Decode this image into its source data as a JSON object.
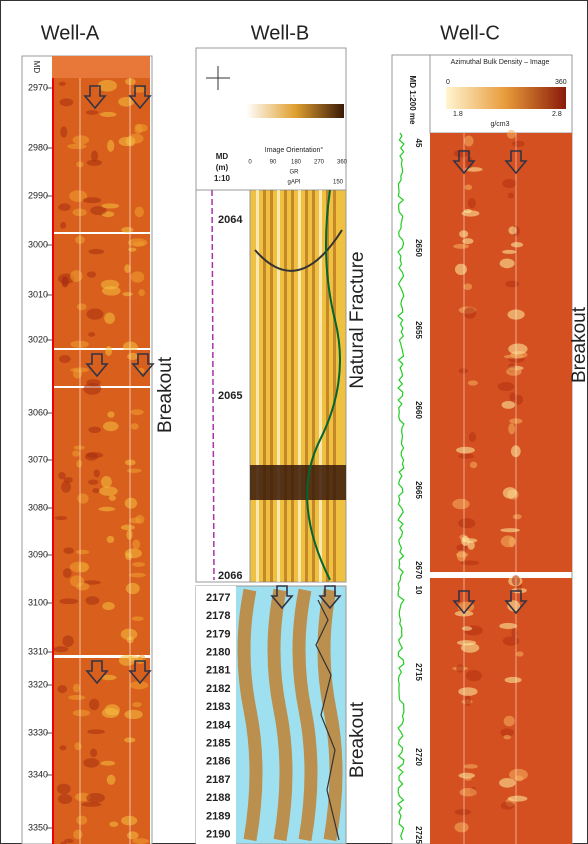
{
  "well_a": {
    "title": "Well-A",
    "depth_header": "MD",
    "depths": [
      "2970",
      "2980",
      "2990",
      "3000",
      "3010",
      "3020",
      "3060",
      "3070",
      "3080",
      "3090",
      "3100",
      "3310",
      "3320",
      "3330",
      "3340",
      "3350"
    ],
    "annotation": "Breakout"
  },
  "well_b": {
    "title": "Well-B",
    "header": {
      "orientation": "Image Orientation°",
      "md": "MD",
      "md_unit": "(m)",
      "scale": "1:10",
      "azimuths": [
        "0",
        "90",
        "180",
        "270",
        "360"
      ],
      "gr": "GR",
      "gr_unit": "gAPI",
      "gr_max": "150"
    },
    "depths_top": [
      "2064",
      "2065",
      "2066"
    ],
    "depths_bottom": [
      "2177",
      "2178",
      "2179",
      "2180",
      "2181",
      "2182",
      "2183",
      "2184",
      "2185",
      "2186",
      "2187",
      "2188",
      "2189",
      "2190"
    ],
    "annotations": [
      "Natural Fracture",
      "Breakout"
    ]
  },
  "well_c": {
    "title": "Well-C",
    "md_scale": "MD 1:200 me",
    "image_title": "Azimuthal Bulk Density – Image",
    "azimuth_min": "0",
    "azimuth_max": "360",
    "density_min": "1.8",
    "density_max": "2.8",
    "density_unit": "g/cm3",
    "depths": [
      "45",
      "2650",
      "2655",
      "2660",
      "2665",
      "2670",
      "10",
      "2715",
      "2720",
      "2725"
    ],
    "annotation": "Breakout"
  }
}
